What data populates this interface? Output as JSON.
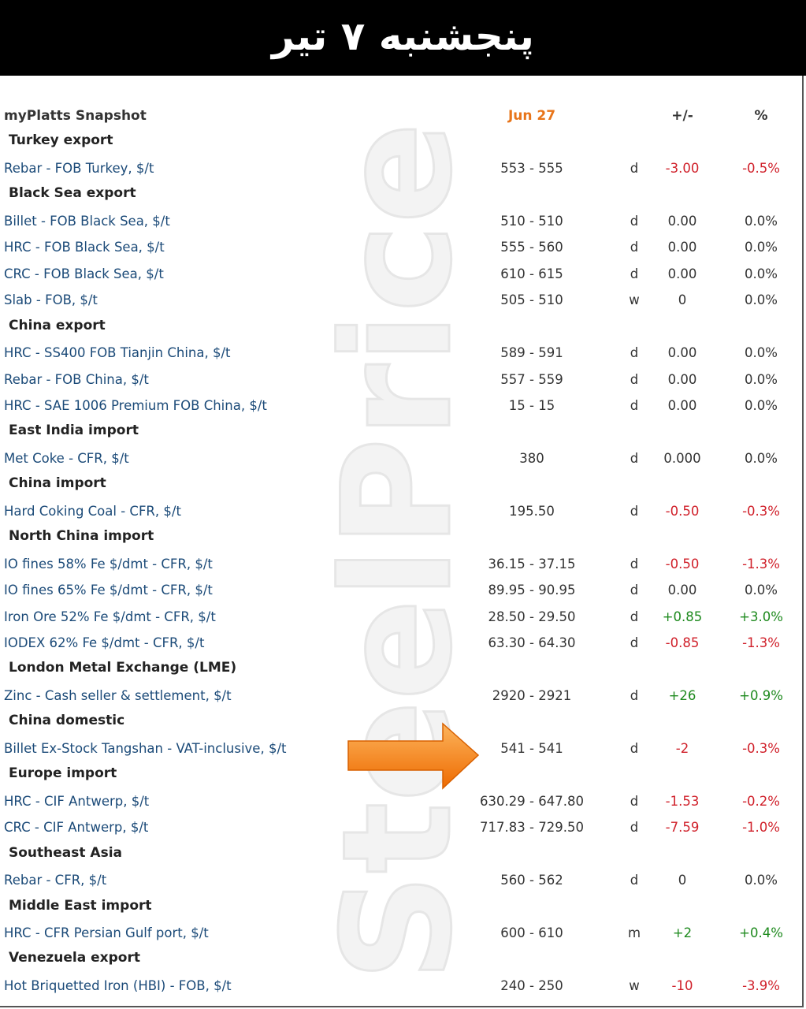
{
  "banner": "پنجشنبه ۷ تیر",
  "watermark": "SteelPrice",
  "table": {
    "header": [
      "myPlatts Snapshot",
      "Jun 27",
      "+/-",
      "%"
    ],
    "sections": [
      {
        "title": "Turkey export",
        "rows": [
          [
            "Rebar - FOB Turkey, $/t",
            "553 - 555",
            "d",
            "-3.00",
            "-0.5%"
          ]
        ]
      },
      {
        "title": "Black Sea export",
        "rows": [
          [
            "Billet - FOB Black Sea, $/t",
            "510 - 510",
            "d",
            "0.00",
            "0.0%"
          ],
          [
            "HRC - FOB Black Sea, $/t",
            "555 - 560",
            "d",
            "0.00",
            "0.0%"
          ],
          [
            "CRC - FOB Black Sea, $/t",
            "610 - 615",
            "d",
            "0.00",
            "0.0%"
          ],
          [
            "Slab - FOB, $/t",
            "505 - 510",
            "w",
            "0",
            "0.0%"
          ]
        ]
      },
      {
        "title": "China export",
        "rows": [
          [
            "HRC - SS400 FOB Tianjin China, $/t",
            "589 - 591",
            "d",
            "0.00",
            "0.0%"
          ],
          [
            "Rebar - FOB China, $/t",
            "557 - 559",
            "d",
            "0.00",
            "0.0%"
          ],
          [
            "HRC - SAE 1006 Premium FOB China, $/t",
            "15 - 15",
            "d",
            "0.00",
            "0.0%"
          ]
        ]
      },
      {
        "title": "East India import",
        "rows": [
          [
            "Met Coke - CFR, $/t",
            "380",
            "d",
            "0.000",
            "0.0%"
          ]
        ]
      },
      {
        "title": "China import",
        "rows": [
          [
            "Hard Coking Coal - CFR, $/t",
            "195.50",
            "d",
            "-0.50",
            "-0.3%"
          ]
        ]
      },
      {
        "title": "North China import",
        "rows": [
          [
            "IO fines 58% Fe $/dmt - CFR, $/t",
            "36.15 - 37.15",
            "d",
            "-0.50",
            "-1.3%"
          ],
          [
            "IO fines 65% Fe $/dmt - CFR, $/t",
            "89.95 - 90.95",
            "d",
            "0.00",
            "0.0%"
          ],
          [
            "Iron Ore 52% Fe $/dmt - CFR, $/t",
            "28.50 - 29.50",
            "d",
            "+0.85",
            "+3.0%"
          ],
          [
            "IODEX 62% Fe $/dmt - CFR, $/t",
            "63.30 - 64.30",
            "d",
            "-0.85",
            "-1.3%"
          ]
        ]
      },
      {
        "title": "London Metal Exchange (LME)",
        "rows": [
          [
            "Zinc - Cash seller & settlement, $/t",
            "2920 - 2921",
            "d",
            "+26",
            "+0.9%"
          ]
        ]
      },
      {
        "title": "China domestic",
        "rows": [
          [
            "Billet Ex-Stock Tangshan - VAT-inclusive, $/t",
            "541 - 541",
            "d",
            "-2",
            "-0.3%"
          ]
        ]
      },
      {
        "title": "Europe import",
        "rows": [
          [
            "HRC - CIF Antwerp, $/t",
            "630.29 - 647.80",
            "d",
            "-1.53",
            "-0.2%"
          ],
          [
            "CRC - CIF Antwerp, $/t",
            "717.83 - 729.50",
            "d",
            "-7.59",
            "-1.0%"
          ]
        ]
      },
      {
        "title": "Southeast Asia",
        "rows": [
          [
            "Rebar - CFR, $/t",
            "560 - 562",
            "d",
            "0",
            "0.0%"
          ]
        ]
      },
      {
        "title": "Middle East import",
        "rows": [
          [
            "HRC - CFR Persian Gulf port, $/t",
            "600 - 610",
            "m",
            "+2",
            "+0.4%"
          ]
        ]
      },
      {
        "title": "Venezuela export",
        "rows": [
          [
            "Hot Briquetted Iron (HBI) - FOB, $/t",
            "240 - 250",
            "w",
            "-10",
            "-3.9%"
          ]
        ]
      }
    ]
  }
}
